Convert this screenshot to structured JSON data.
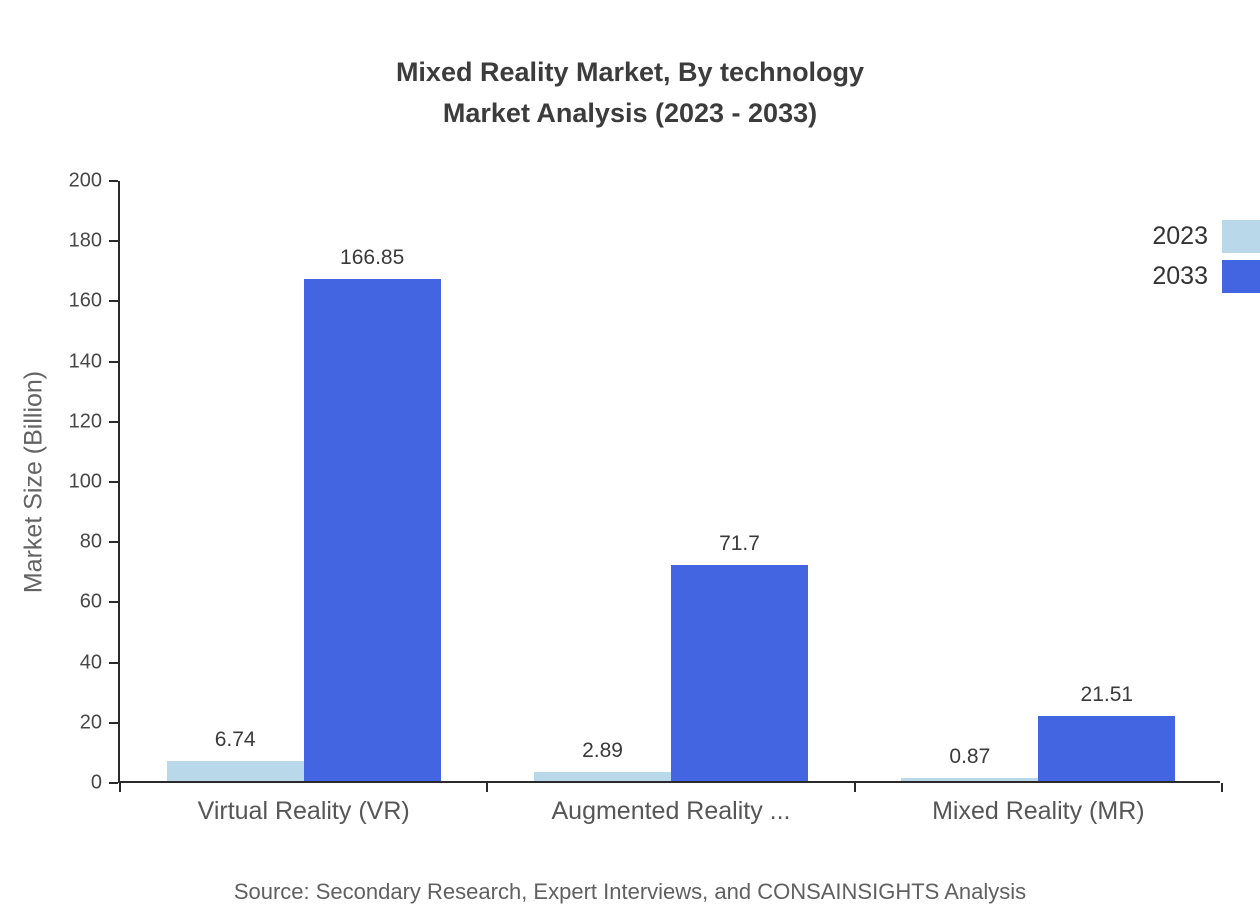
{
  "title": {
    "line1": "Mixed Reality Market, By technology",
    "line2": "Market Analysis (2023 - 2033)"
  },
  "source": "Source: Secondary Research, Expert Interviews, and CONSAINSIGHTS Analysis",
  "chart_data": {
    "type": "bar",
    "categories": [
      "Virtual Reality (VR)",
      "Augmented Reality ...",
      "Mixed Reality (MR)"
    ],
    "series": [
      {
        "name": "2023",
        "color": "#b9d9ea",
        "values": [
          6.74,
          2.89,
          0.87
        ]
      },
      {
        "name": "2033",
        "color": "#4365e2",
        "values": [
          166.85,
          71.7,
          21.51
        ]
      }
    ],
    "title": "Mixed Reality Market, By technology Market Analysis (2023 - 2033)",
    "xlabel": "",
    "ylabel": "Market Size (Billion)",
    "ylim": [
      0,
      200
    ],
    "ytick_step": 20,
    "grid": false,
    "legend_position": "top-right",
    "value_labels": true
  }
}
